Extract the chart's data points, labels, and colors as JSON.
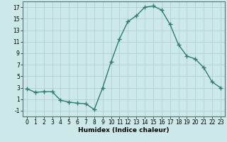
{
  "x": [
    0,
    1,
    2,
    3,
    4,
    5,
    6,
    7,
    8,
    9,
    10,
    11,
    12,
    13,
    14,
    15,
    16,
    17,
    18,
    19,
    20,
    21,
    22,
    23
  ],
  "y": [
    2.8,
    2.2,
    2.3,
    2.3,
    0.8,
    0.5,
    0.3,
    0.2,
    -0.8,
    3.0,
    7.5,
    11.5,
    14.5,
    15.5,
    17.0,
    17.2,
    16.5,
    14.0,
    10.5,
    8.5,
    8.0,
    6.5,
    4.0,
    3.0
  ],
  "line_color": "#2e7d6e",
  "marker": "+",
  "marker_size": 4,
  "bg_color": "#cce8e8",
  "grid_major_color": "#b0d0d0",
  "grid_minor_color": "#c4e0e0",
  "xlabel": "Humidex (Indice chaleur)",
  "xlim": [
    -0.5,
    23.5
  ],
  "ylim": [
    -2,
    18
  ],
  "yticks": [
    -1,
    1,
    3,
    5,
    7,
    9,
    11,
    13,
    15,
    17
  ],
  "xticks": [
    0,
    1,
    2,
    3,
    4,
    5,
    6,
    7,
    8,
    9,
    10,
    11,
    12,
    13,
    14,
    15,
    16,
    17,
    18,
    19,
    20,
    21,
    22,
    23
  ],
  "tick_fontsize": 5.5,
  "label_fontsize": 6.5,
  "line_width": 1.0
}
